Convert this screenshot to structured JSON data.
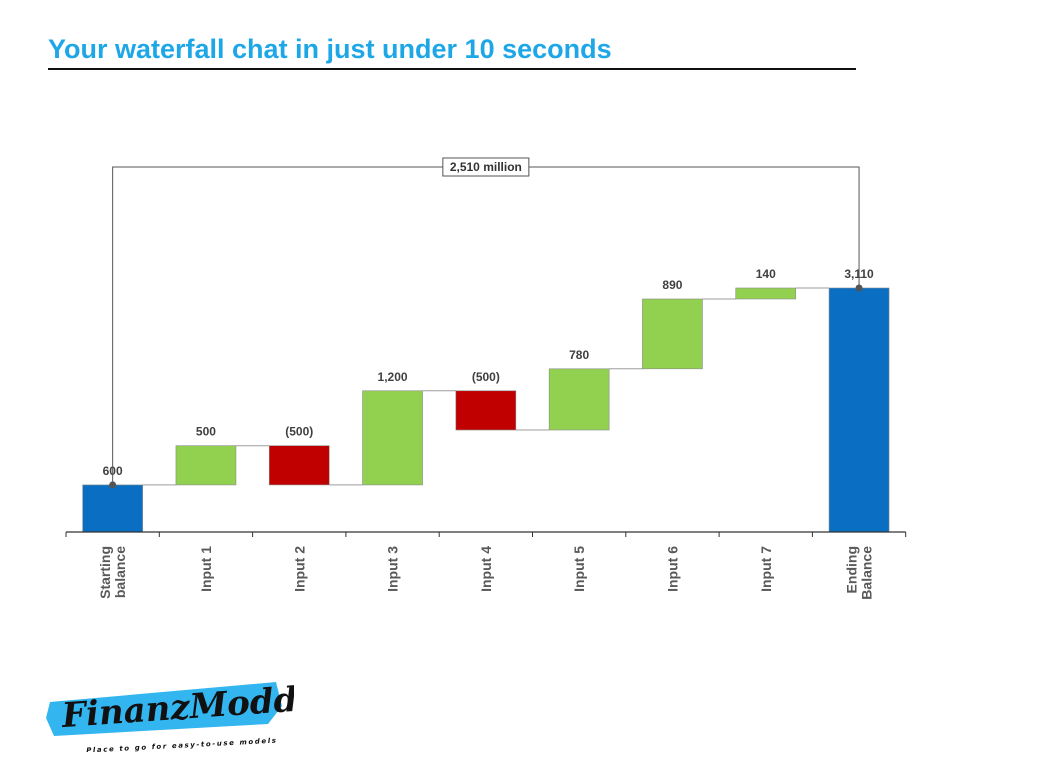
{
  "page": {
    "title": "Your waterfall chat in just under 10 seconds"
  },
  "logo": {
    "name": "FinanzModd",
    "tagline": "Place to go for easy-to-use models",
    "brand_color": "#33B5F0"
  },
  "colors": {
    "total": "#0A6FC2",
    "increase": "#92D050",
    "decrease": "#C00000",
    "connector": "#9E9E9E",
    "title": "#1EA7E6"
  },
  "chart_data": {
    "type": "bar",
    "subtype": "waterfall",
    "title": "",
    "xlabel": "",
    "ylabel": "",
    "categories": [
      "Starting balance",
      "Input 1",
      "Input 2",
      "Input 3",
      "Input 4",
      "Input 5",
      "Input 6",
      "Input 7",
      "Ending Balance"
    ],
    "tick_lines": [
      [
        "Starting",
        "balance"
      ],
      [
        "Input 1"
      ],
      [
        "Input 2"
      ],
      [
        "Input 3"
      ],
      [
        "Input 4"
      ],
      [
        "Input 5"
      ],
      [
        "Input 6"
      ],
      [
        "Input 7"
      ],
      [
        "Ending",
        "Balance"
      ]
    ],
    "values": [
      600,
      500,
      -500,
      1200,
      -500,
      780,
      890,
      140,
      3110
    ],
    "kinds": [
      "total",
      "increase",
      "decrease",
      "increase",
      "decrease",
      "increase",
      "increase",
      "increase",
      "total"
    ],
    "data_labels": [
      "600",
      "500",
      "(500)",
      "1,200",
      "(500)",
      "780",
      "890",
      "140",
      "3,110"
    ],
    "difference_annotation": "2,510 million",
    "ylim": [
      0,
      3110
    ],
    "grid": false,
    "legend": "none"
  }
}
